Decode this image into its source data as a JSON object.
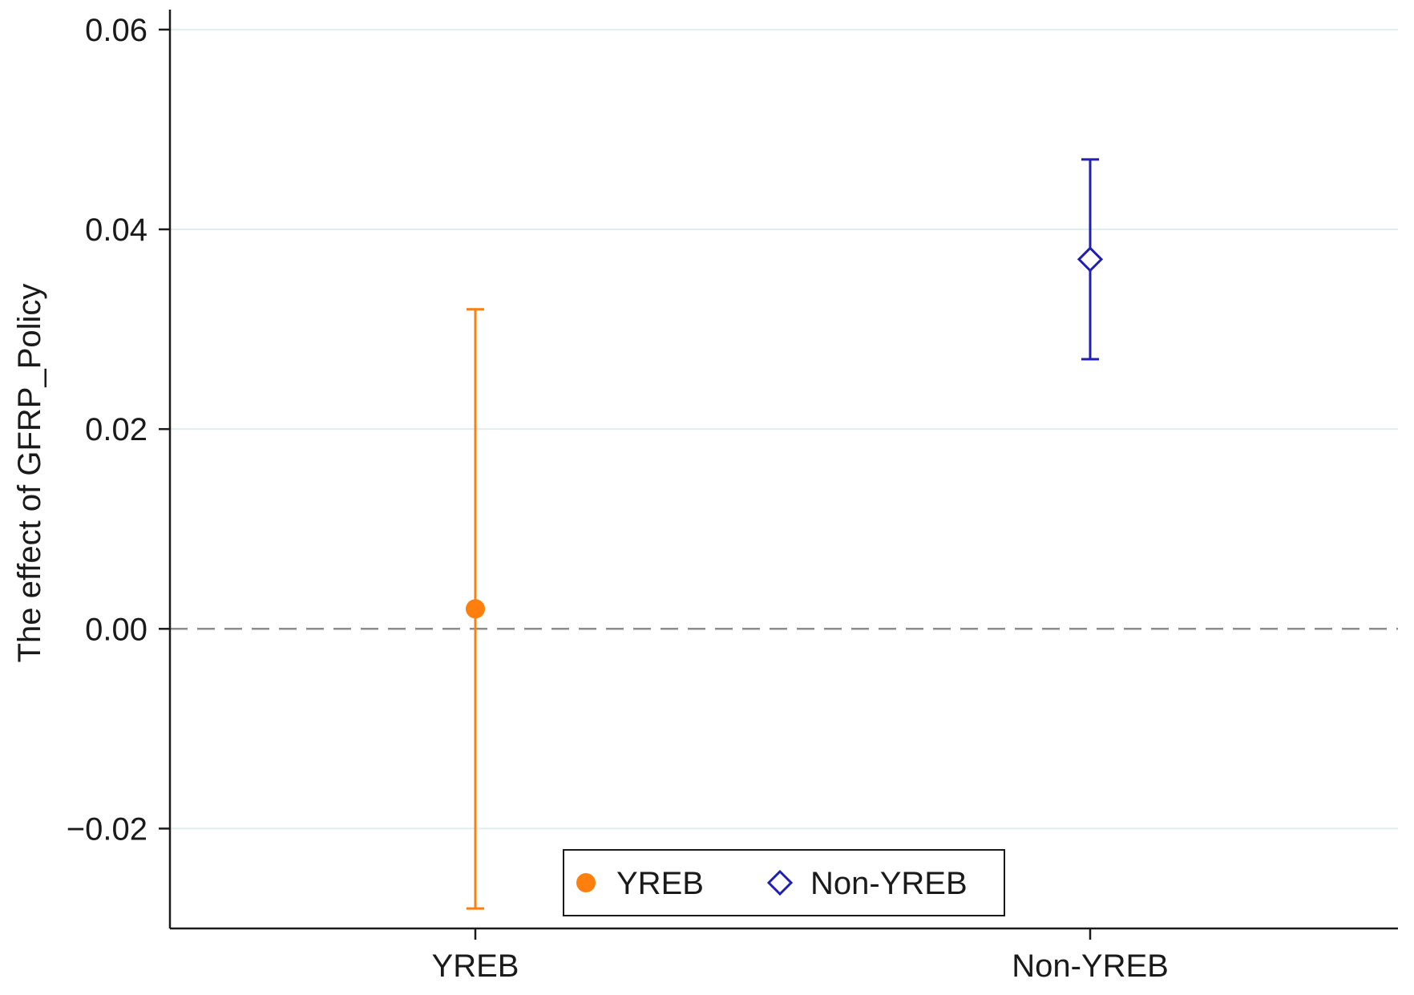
{
  "chart_data": {
    "type": "scatter",
    "subtype": "coefficient-plot-with-confidence-intervals",
    "title": "",
    "xlabel": "",
    "ylabel": "The effect of GFRP_Policy",
    "categories": [
      "YREB",
      "Non-YREB"
    ],
    "ylim": [
      -0.03,
      0.062
    ],
    "yticks": [
      -0.02,
      0.0,
      0.02,
      0.04,
      0.06
    ],
    "ytick_labels": [
      "−0.02",
      "0.00",
      "0.02",
      "0.04",
      "0.06"
    ],
    "grid": true,
    "reference_line": {
      "y": 0,
      "style": "dashed"
    },
    "series": [
      {
        "name": "YREB",
        "category": "YREB",
        "estimate": 0.002,
        "ci_low": -0.028,
        "ci_high": 0.032,
        "marker": "filled-circle",
        "color": "#ff7f0e"
      },
      {
        "name": "Non-YREB",
        "category": "Non-YREB",
        "estimate": 0.037,
        "ci_low": 0.027,
        "ci_high": 0.047,
        "marker": "hollow-diamond",
        "color": "#1f1fb4"
      }
    ],
    "legend": {
      "position": "bottom-center",
      "entries": [
        "YREB",
        "Non-YREB"
      ]
    }
  }
}
